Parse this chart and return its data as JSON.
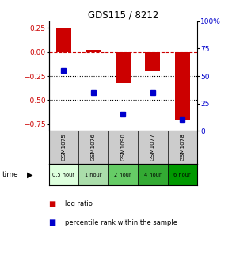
{
  "title": "GDS115 / 8212",
  "samples": [
    "GSM1075",
    "GSM1076",
    "GSM1090",
    "GSM1077",
    "GSM1078"
  ],
  "time_labels": [
    "0.5 hour",
    "1 hour",
    "2 hour",
    "4 hour",
    "6 hour"
  ],
  "log_ratio": [
    0.25,
    0.02,
    -0.32,
    -0.2,
    -0.7
  ],
  "percentile": [
    55,
    35,
    15,
    35,
    10
  ],
  "ylim_left": [
    -0.82,
    0.32
  ],
  "ylim_right": [
    0,
    100
  ],
  "yticks_left": [
    0.25,
    0,
    -0.25,
    -0.5,
    -0.75
  ],
  "yticks_right": [
    0,
    25,
    50,
    75,
    100
  ],
  "bar_color": "#cc0000",
  "dot_color": "#0000cc",
  "bar_width": 0.5,
  "hline_y": 0,
  "dotted_lines": [
    -0.25,
    -0.5
  ],
  "background_color": "#ffffff",
  "time_colors": [
    "#ddffdd",
    "#aaddaa",
    "#66cc66",
    "#33aa33",
    "#009900"
  ],
  "sample_bg": "#cccccc"
}
